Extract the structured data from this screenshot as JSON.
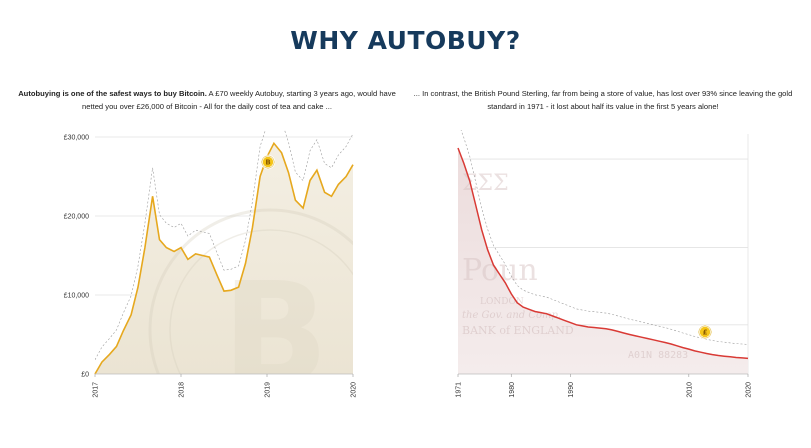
{
  "page": {
    "title": "WHY AUTOBUY?",
    "left_description": {
      "bold": "Autobuying is one of the safest ways to buy Bitcoin.",
      "rest": " A £70 weekly Autobuy, starting 3 years ago, would have netted you over £26,000 of Bitcoin - All for the daily cost of tea and cake ..."
    },
    "right_description": "... In contrast, the British Pound Sterling, far from being a store of value, has lost over 93% since leaving the gold standard in 1971 - it lost about half its value in the first 5 years alone!"
  },
  "colors": {
    "title": "#163a5c",
    "btc_line": "#e6a81e",
    "btc_fill": "#f1ece0",
    "gbp_line": "#d93a35",
    "gbp_fill": "#efe0e0",
    "envelope": "#9a9a9a",
    "coin": "#f5c518"
  },
  "icons": {
    "btc_marker": "bitcoin-coin-icon",
    "gbp_marker": "pound-coin-icon",
    "btc_marker_symbol": "B",
    "gbp_marker_symbol": "£"
  },
  "chart_data": [
    {
      "type": "area",
      "title": "",
      "xlabel": "",
      "ylabel": "",
      "x_ticks": [
        "2017",
        "2018",
        "2019",
        "2020"
      ],
      "y_ticks": [
        "£0",
        "£10,000",
        "£20,000",
        "£30,000"
      ],
      "xlim": [
        2017,
        2020
      ],
      "ylim": [
        0,
        30000
      ],
      "grid": true,
      "series": [
        {
          "x": [
            2017.0,
            2017.08,
            2017.17,
            2017.25,
            2017.33,
            2017.42,
            2017.5,
            2017.58,
            2017.67,
            2017.75,
            2017.83,
            2017.92,
            2018.0,
            2018.08,
            2018.17,
            2018.25,
            2018.33,
            2018.42,
            2018.5,
            2018.58,
            2018.67,
            2018.75,
            2018.83,
            2018.92,
            2019.0,
            2019.08,
            2019.17,
            2019.25,
            2019.33,
            2019.42,
            2019.5,
            2019.58,
            2019.67,
            2019.75,
            2019.83,
            2019.92,
            2020.0
          ],
          "values": [
            0,
            1500,
            2500,
            3500,
            5500,
            7500,
            11000,
            16000,
            22500,
            17000,
            16000,
            15500,
            16000,
            14500,
            15200,
            15000,
            14800,
            12500,
            10500,
            10600,
            11000,
            14000,
            18500,
            25000,
            27500,
            29200,
            28000,
            25500,
            22000,
            21000,
            24500,
            25800,
            23000,
            22500,
            24000,
            25000,
            26500
          ]
        }
      ]
    },
    {
      "type": "area",
      "title": "",
      "xlabel": "",
      "ylabel": "",
      "x_ticks": [
        "1971",
        "1980",
        "1990",
        "2010",
        "2020"
      ],
      "ylim": [
        0,
        100
      ],
      "grid": true,
      "series": [
        {
          "x": [
            1971,
            1972,
            1973,
            1974,
            1975,
            1976,
            1977,
            1978,
            1979,
            1980,
            1981,
            1982,
            1983,
            1984,
            1985,
            1986,
            1987,
            1988,
            1989,
            1990,
            1991,
            1992,
            1993,
            1994,
            1995,
            1996,
            1997,
            1998,
            1999,
            2000,
            2001,
            2002,
            2003,
            2004,
            2005,
            2006,
            2007,
            2008,
            2009,
            2010,
            2011,
            2012,
            2013,
            2014,
            2015,
            2016,
            2017,
            2018,
            2019,
            2020
          ],
          "values": [
            100,
            93,
            85,
            74,
            63,
            54,
            47,
            43,
            39,
            34,
            30,
            28,
            27,
            26,
            25.5,
            25,
            24,
            23,
            22,
            21,
            20,
            19.5,
            19,
            18.8,
            18.5,
            18.2,
            17.7,
            17,
            16.3,
            15.6,
            15,
            14.4,
            13.8,
            13.2,
            12.6,
            12,
            11.3,
            10.5,
            9.7,
            9,
            8.2,
            7.6,
            7,
            6.5,
            6.1,
            5.8,
            5.5,
            5.2,
            5,
            4.8
          ]
        }
      ]
    }
  ]
}
